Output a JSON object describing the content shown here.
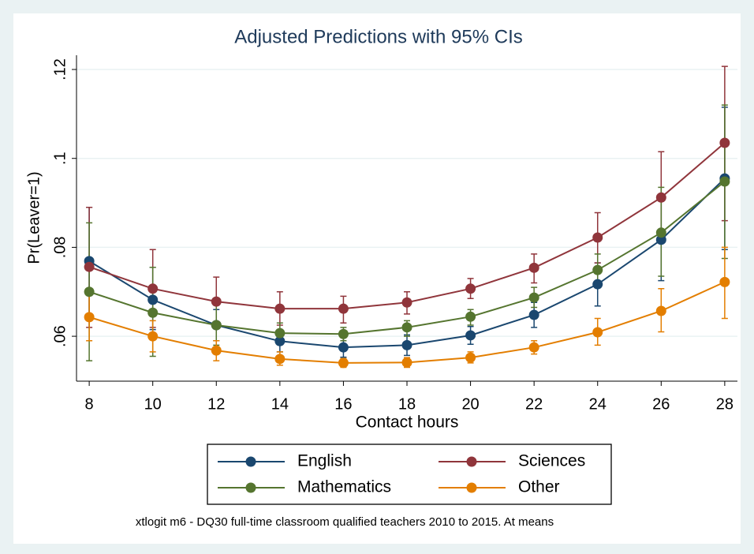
{
  "chart_data": {
    "type": "line",
    "title": "Adjusted Predictions with 95% CIs",
    "x_label": "Contact hours",
    "y_label": "Pr(Leaver=1)",
    "note": "xtlogit m6 - DQ30 full-time classroom qualified teachers 2010 to 2015. At means",
    "x": [
      8,
      10,
      12,
      14,
      16,
      18,
      20,
      22,
      24,
      26,
      28
    ],
    "xlim": [
      7.6,
      28.4
    ],
    "xticks": [
      8,
      10,
      12,
      14,
      16,
      18,
      20,
      22,
      24,
      26,
      28
    ],
    "ylim": [
      0.0499,
      0.1232
    ],
    "yticks": [
      {
        "value": 0.06,
        "label": ".06"
      },
      {
        "value": 0.08,
        "label": ".08"
      },
      {
        "value": 0.1,
        "label": ".1"
      },
      {
        "value": 0.12,
        "label": ".12"
      }
    ],
    "grid": true,
    "legend": "bottom",
    "series": [
      {
        "name": "English",
        "color": "#1a476f",
        "values": [
          0.0769,
          0.0682,
          0.0625,
          0.0589,
          0.0575,
          0.058,
          0.0602,
          0.0648,
          0.0717,
          0.0817,
          0.0955
        ],
        "lower": [
          0.0645,
          0.0615,
          0.059,
          0.0565,
          0.0553,
          0.0557,
          0.0582,
          0.062,
          0.0668,
          0.0725,
          0.0795
        ],
        "upper": [
          0.089,
          0.0755,
          0.066,
          0.0615,
          0.0597,
          0.0603,
          0.0622,
          0.0676,
          0.0765,
          0.091,
          0.1115
        ]
      },
      {
        "name": "Sciences",
        "color": "#90353b",
        "values": [
          0.0756,
          0.0707,
          0.0678,
          0.0662,
          0.0662,
          0.0676,
          0.0707,
          0.0754,
          0.0822,
          0.0912,
          0.1035
        ],
        "lower": [
          0.062,
          0.062,
          0.062,
          0.0625,
          0.063,
          0.065,
          0.0685,
          0.072,
          0.0765,
          0.081,
          0.086
        ],
        "upper": [
          0.089,
          0.0795,
          0.0733,
          0.07,
          0.069,
          0.07,
          0.073,
          0.0785,
          0.0878,
          0.1015,
          0.1207
        ]
      },
      {
        "name": "Mathematics",
        "color": "#55752f",
        "values": [
          0.07,
          0.0653,
          0.0625,
          0.0607,
          0.0605,
          0.062,
          0.0644,
          0.0687,
          0.0749,
          0.0833,
          0.0948
        ],
        "lower": [
          0.0545,
          0.0555,
          0.058,
          0.0585,
          0.059,
          0.06,
          0.0625,
          0.0665,
          0.0715,
          0.0735,
          0.0775
        ],
        "upper": [
          0.0855,
          0.0755,
          0.067,
          0.063,
          0.062,
          0.0635,
          0.066,
          0.071,
          0.0785,
          0.0935,
          0.112
        ]
      },
      {
        "name": "Other",
        "color": "#e37e00",
        "values": [
          0.0643,
          0.06,
          0.0568,
          0.0549,
          0.054,
          0.0541,
          0.0552,
          0.0575,
          0.0609,
          0.0657,
          0.0722
        ],
        "lower": [
          0.059,
          0.0565,
          0.0545,
          0.0535,
          0.053,
          0.053,
          0.054,
          0.056,
          0.058,
          0.061,
          0.064
        ],
        "upper": [
          0.07,
          0.0635,
          0.059,
          0.0565,
          0.055,
          0.0552,
          0.0565,
          0.059,
          0.064,
          0.0707,
          0.08
        ]
      }
    ]
  }
}
